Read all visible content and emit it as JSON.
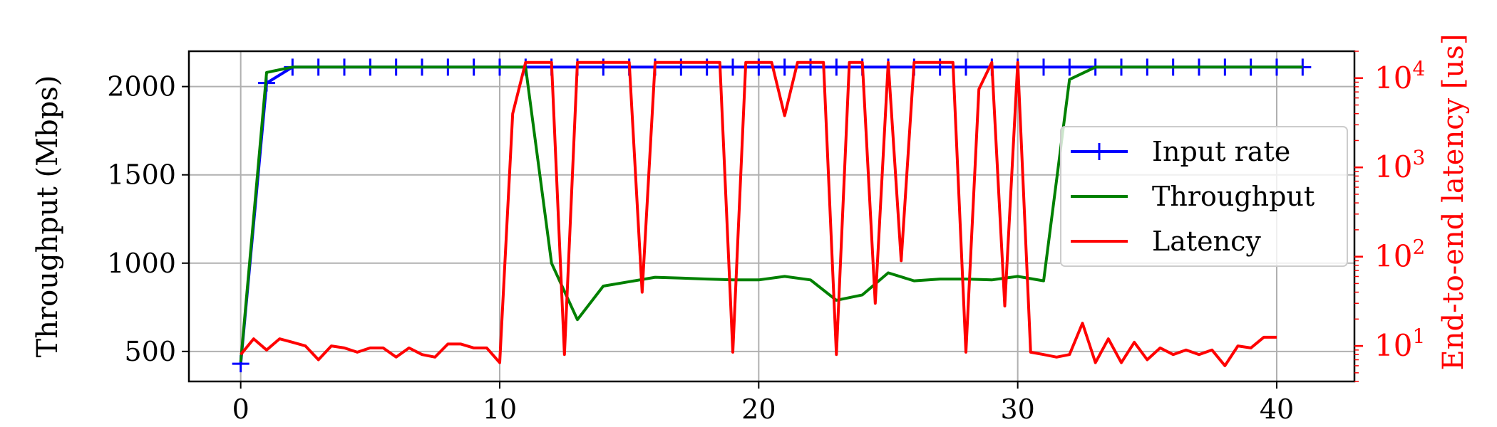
{
  "chart_data": {
    "type": "line",
    "ylabel_left": "Throughput (Mbps)",
    "ylabel_right": "End-to-end latency [us]",
    "xlim": [
      -2,
      43
    ],
    "ylim_left": [
      330,
      2200
    ],
    "ylim_right": [
      4,
      20000
    ],
    "yscale_right": "log",
    "xticks": [
      0,
      10,
      20,
      30,
      40
    ],
    "yticks_left": [
      500,
      1000,
      1500,
      2000
    ],
    "yticks_right": [
      {
        "base": "10",
        "exp": "1",
        "value": 10
      },
      {
        "base": "10",
        "exp": "2",
        "value": 100
      },
      {
        "base": "10",
        "exp": "3",
        "value": 1000
      },
      {
        "base": "10",
        "exp": "4",
        "value": 10000
      }
    ],
    "grid": true,
    "legend_position": "center-right",
    "colors": {
      "input_rate": "#0000ff",
      "throughput": "#008000",
      "latency": "#ff0000"
    },
    "series": [
      {
        "name": "Input rate",
        "axis": "left",
        "marker": "plus",
        "x": [
          0,
          1,
          2,
          3,
          4,
          5,
          6,
          7,
          8,
          9,
          10,
          11,
          12,
          13,
          14,
          15,
          16,
          17,
          18,
          19,
          20,
          21,
          22,
          23,
          24,
          25,
          26,
          27,
          28,
          29,
          30,
          31,
          32,
          33,
          34,
          35,
          36,
          37,
          38,
          39,
          40,
          41
        ],
        "y": [
          430,
          2020,
          2110,
          2110,
          2110,
          2110,
          2110,
          2110,
          2110,
          2110,
          2110,
          2110,
          2110,
          2110,
          2110,
          2110,
          2110,
          2110,
          2110,
          2110,
          2110,
          2110,
          2110,
          2110,
          2110,
          2110,
          2110,
          2110,
          2110,
          2110,
          2110,
          2110,
          2110,
          2110,
          2110,
          2110,
          2110,
          2110,
          2110,
          2110,
          2110,
          2110
        ]
      },
      {
        "name": "Throughput",
        "axis": "left",
        "x": [
          0,
          1,
          2,
          3,
          4,
          5,
          6,
          7,
          8,
          9,
          10,
          11,
          12,
          13,
          14,
          15,
          16,
          17,
          18,
          19,
          20,
          21,
          22,
          23,
          24,
          25,
          26,
          27,
          28,
          29,
          30,
          31,
          32,
          33,
          34,
          35,
          36,
          37,
          38,
          39,
          40,
          41
        ],
        "y": [
          440,
          2080,
          2110,
          2110,
          2110,
          2110,
          2110,
          2110,
          2110,
          2110,
          2110,
          2110,
          1000,
          680,
          870,
          895,
          920,
          915,
          910,
          905,
          905,
          925,
          905,
          790,
          820,
          945,
          900,
          910,
          910,
          905,
          925,
          900,
          2040,
          2110,
          2110,
          2110,
          2110,
          2110,
          2110,
          2110,
          2110,
          2110
        ]
      },
      {
        "name": "Latency",
        "axis": "right",
        "x": [
          0,
          0.5,
          1,
          1.5,
          2,
          2.5,
          3,
          3.5,
          4,
          4.5,
          5,
          5.5,
          6,
          6.5,
          7,
          7.5,
          8,
          8.5,
          9,
          9.5,
          10,
          10.5,
          11,
          11.5,
          12,
          12.5,
          13,
          13.5,
          14,
          14.5,
          15,
          15.5,
          16,
          16.5,
          17,
          17.5,
          18,
          18.5,
          19,
          19.5,
          20,
          20.5,
          21,
          21.5,
          22,
          22.5,
          23,
          23.5,
          24,
          24.5,
          25,
          25.5,
          26,
          26.5,
          27,
          27.5,
          28,
          28.5,
          29,
          29.5,
          30,
          30.5,
          31,
          31.5,
          32,
          32.5,
          33,
          33.5,
          34,
          34.5,
          35,
          35.5,
          36,
          36.5,
          37,
          37.5,
          38,
          38.5,
          39,
          39.5,
          40
        ],
        "y": [
          8,
          12,
          9,
          12,
          11,
          10,
          7,
          10,
          9.5,
          8.5,
          9.5,
          9.5,
          7.5,
          9.5,
          8,
          7.5,
          10.5,
          10.5,
          9.5,
          9.5,
          6.5,
          4000,
          15000,
          15000,
          15000,
          8,
          15000,
          15000,
          15000,
          15000,
          15000,
          40,
          15000,
          15000,
          15000,
          15000,
          15000,
          15000,
          8.5,
          15000,
          15000,
          15000,
          3800,
          15000,
          15000,
          15000,
          8,
          15000,
          15000,
          30,
          15000,
          90,
          15000,
          15000,
          15000,
          15000,
          8.5,
          7500,
          15000,
          28,
          15000,
          8.5,
          8,
          7.5,
          8,
          18,
          6.5,
          12,
          6.5,
          11,
          7,
          9.5,
          8,
          9,
          8,
          9,
          6,
          10,
          9.5,
          12.5,
          12.5
        ]
      }
    ]
  }
}
